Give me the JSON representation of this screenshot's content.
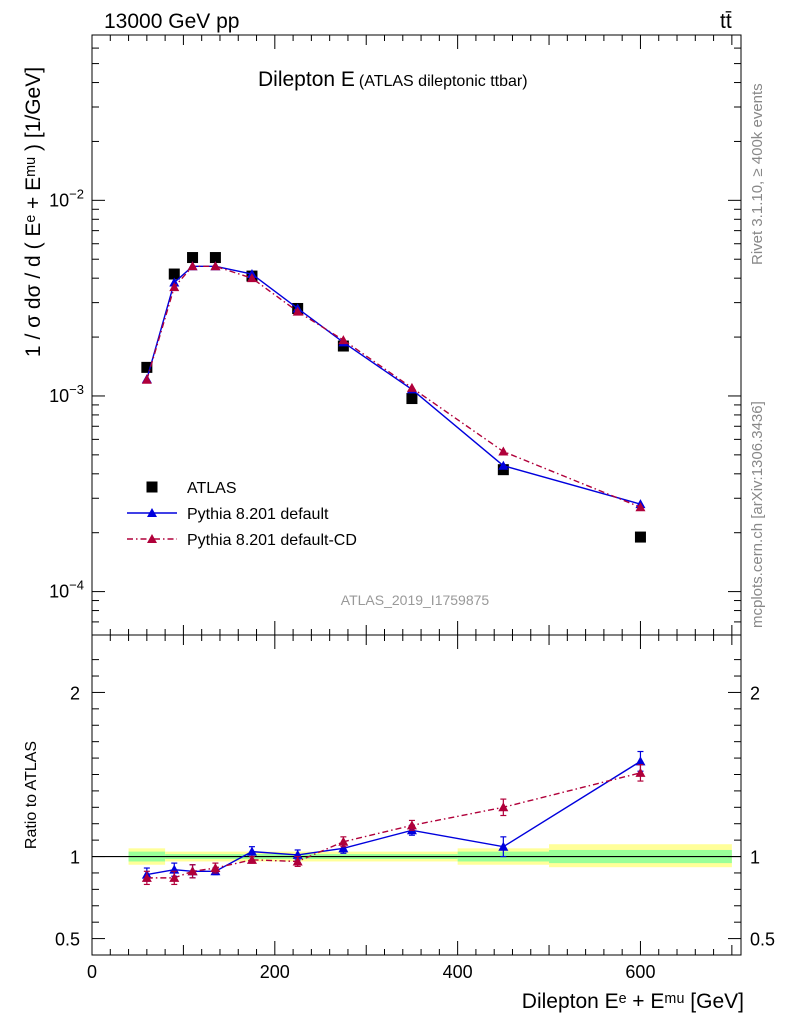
{
  "header": {
    "energy_label": "13000 GeV pp",
    "process_label": "tt̄"
  },
  "side_labels": {
    "rivet": "Rivet 3.1.10, ≥ 400k events",
    "mcplots": "mcplots.cern.ch [arXiv:1306.3436]"
  },
  "analysis_tag": "ATLAS_2019_I1759875",
  "chart_data": [
    {
      "type": "scatter",
      "panel": "main",
      "title": "Dilepton E",
      "subtitle": "(ATLAS dileptonic ttbar)",
      "ylabel": "1 / σ  dσ / d ( Eᵉ + Eᵐᵘ ) [1/GeV]",
      "yscale": "log",
      "xlim": [
        0,
        710
      ],
      "ylim": [
        6e-05,
        0.07
      ],
      "y_ticks": [
        0.0001,
        0.001,
        0.01
      ],
      "y_tick_labels": [
        {
          "base": "10",
          "exp": "−4"
        },
        {
          "base": "10",
          "exp": "−3"
        },
        {
          "base": "10",
          "exp": "−2"
        }
      ],
      "legend_position": "bottom-left",
      "series": [
        {
          "name": "ATLAS",
          "style": "data-marker",
          "color": "#000000",
          "x": [
            60,
            90,
            110,
            135,
            175,
            225,
            275,
            350,
            450,
            600
          ],
          "y": [
            0.0014,
            0.0042,
            0.0051,
            0.0051,
            0.0041,
            0.0028,
            0.0018,
            0.00097,
            0.00042,
            0.00019
          ]
        },
        {
          "name": "Pythia 8.201 default",
          "style": "solid",
          "color": "#0000dd",
          "x": [
            60,
            90,
            110,
            135,
            175,
            225,
            275,
            350,
            450,
            600
          ],
          "y": [
            0.00122,
            0.0038,
            0.0046,
            0.0046,
            0.0042,
            0.0028,
            0.00188,
            0.00108,
            0.00044,
            0.00028
          ]
        },
        {
          "name": "Pythia 8.201 default-CD",
          "style": "dash-dot",
          "color": "#b0003a",
          "x": [
            60,
            90,
            110,
            135,
            175,
            225,
            275,
            350,
            450,
            600
          ],
          "y": [
            0.00121,
            0.0036,
            0.0046,
            0.0046,
            0.004,
            0.0027,
            0.00193,
            0.0011,
            0.00052,
            0.00027
          ]
        }
      ]
    },
    {
      "type": "line",
      "panel": "ratio",
      "ylabel": "Ratio to ATLAS",
      "xlabel": "Dilepton Eᵉ + Eᵐᵘ [GeV]",
      "xlim": [
        0,
        710
      ],
      "ylim": [
        0.4,
        2.35
      ],
      "x_ticks": [
        0,
        200,
        400,
        600
      ],
      "y_ticks": [
        0.5,
        1,
        2
      ],
      "y_tick_labels": [
        "0.5",
        "1",
        "2"
      ],
      "reference_line": 1,
      "uncertainty_bands": [
        {
          "x_min": 40,
          "x_max": 80,
          "inner": [
            0.97,
            1.03
          ],
          "outer": [
            0.95,
            1.05
          ]
        },
        {
          "x_min": 80,
          "x_max": 400,
          "inner": [
            0.985,
            1.015
          ],
          "outer": [
            0.97,
            1.03
          ]
        },
        {
          "x_min": 400,
          "x_max": 500,
          "inner": [
            0.97,
            1.03
          ],
          "outer": [
            0.95,
            1.05
          ]
        },
        {
          "x_min": 500,
          "x_max": 700,
          "inner": [
            0.96,
            1.04
          ],
          "outer": [
            0.935,
            1.075
          ]
        }
      ],
      "series": [
        {
          "name": "Pythia 8.201 default",
          "style": "solid",
          "color": "#0000dd",
          "x": [
            60,
            90,
            110,
            135,
            175,
            225,
            275,
            350,
            450,
            600
          ],
          "y": [
            0.89,
            0.92,
            0.91,
            0.91,
            1.03,
            1.01,
            1.05,
            1.16,
            1.06,
            1.58
          ],
          "err": [
            0.04,
            0.04,
            0.04,
            0.02,
            0.03,
            0.03,
            0.03,
            0.03,
            0.06,
            0.06
          ]
        },
        {
          "name": "Pythia 8.201 default-CD",
          "style": "dash-dot",
          "color": "#b0003a",
          "x": [
            60,
            90,
            110,
            135,
            175,
            225,
            275,
            350,
            450,
            600
          ],
          "y": [
            0.87,
            0.87,
            0.91,
            0.93,
            0.98,
            0.97,
            1.09,
            1.19,
            1.3,
            1.51
          ],
          "err": [
            0.04,
            0.04,
            0.04,
            0.03,
            0.02,
            0.03,
            0.03,
            0.03,
            0.05,
            0.05
          ]
        }
      ]
    }
  ]
}
